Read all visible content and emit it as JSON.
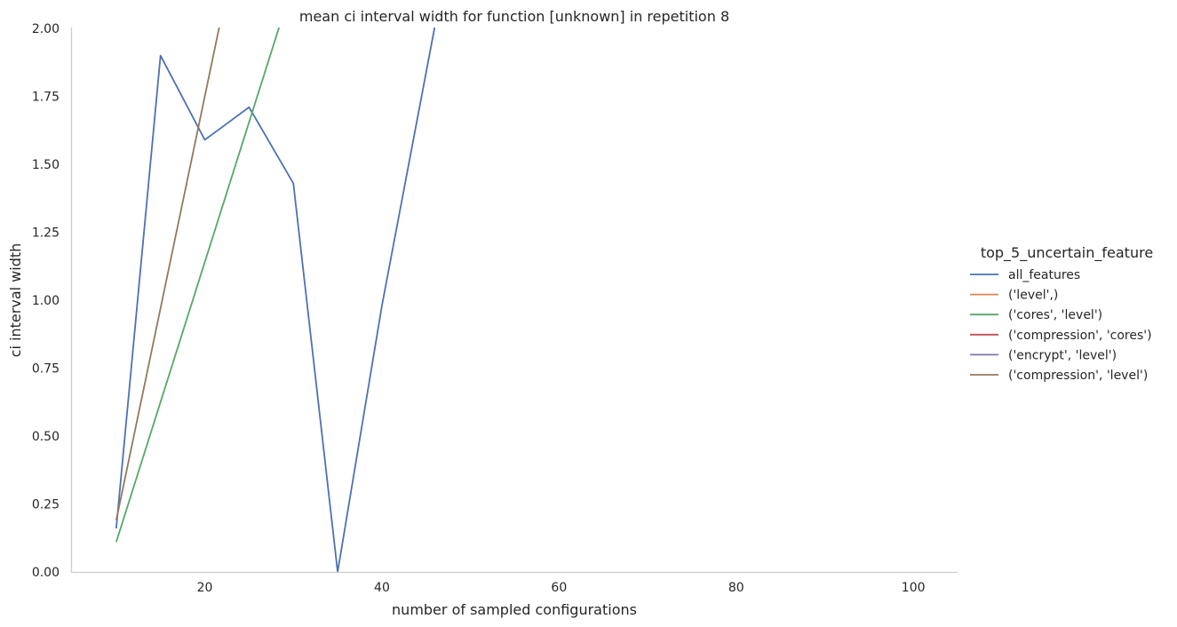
{
  "chart_data": {
    "type": "line",
    "title": "mean ci interval width for function [unknown] in repetition 8",
    "xlabel": "number of sampled configurations",
    "ylabel": "ci interval width",
    "xlim": [
      5,
      105
    ],
    "ylim": [
      0,
      2
    ],
    "xticks": [
      20,
      40,
      60,
      80,
      100
    ],
    "yticks": [
      0,
      0.25,
      0.5,
      0.75,
      1.0,
      1.25,
      1.5,
      1.75,
      2.0
    ],
    "ytick_labels": [
      "0.00",
      "0.25",
      "0.50",
      "0.75",
      "1.00",
      "1.25",
      "1.50",
      "1.75",
      "2.00"
    ],
    "grid": false,
    "legend_position": "right",
    "legend_title": "top_5_uncertain_feature",
    "series": [
      {
        "name": "all_features",
        "color": "#4c72b0",
        "x": [
          10,
          15,
          20,
          25,
          30,
          35,
          40,
          50
        ],
        "y": [
          0.16,
          1.9,
          1.59,
          1.71,
          1.43,
          0.0,
          0.98,
          2.7
        ]
      },
      {
        "name": "('level',)",
        "color": "#dd8452",
        "x": [],
        "y": []
      },
      {
        "name": "('cores', 'level')",
        "color": "#55a868",
        "x": [
          10,
          30
        ],
        "y": [
          0.11,
          2.17
        ]
      },
      {
        "name": "('compression', 'cores')",
        "color": "#c44e52",
        "x": [],
        "y": []
      },
      {
        "name": "('encrypt', 'level')",
        "color": "#8172b3",
        "x": [],
        "y": []
      },
      {
        "name": "('compression', 'level')",
        "color": "#937860",
        "x": [
          10,
          25
        ],
        "y": [
          0.19,
          2.53
        ]
      }
    ]
  }
}
